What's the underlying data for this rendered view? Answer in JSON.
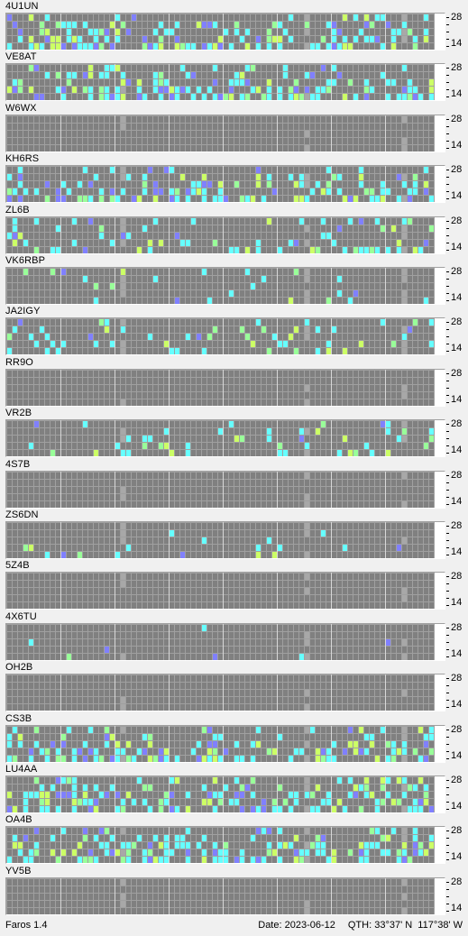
{
  "app": {
    "name": "Faros 1.4"
  },
  "status": {
    "date_label": "Date: 2023-06-12",
    "qth_label": "QTH: 33°37' N  117°38' W"
  },
  "axis": {
    "top_label": "28",
    "bottom_label": "14"
  },
  "colors": {
    "empty_cell": "#808080",
    "grid_line": "#a0a0a0",
    "cell_weak": "#66ffff",
    "cell_medium": "#99ff99",
    "cell_strong": "#8080ff",
    "cell_yellow": "#ccff66",
    "cell_error": "#a8a8a8"
  },
  "grid": {
    "minutes_per_column": 10,
    "columns": 79,
    "bands": [
      "28",
      "24",
      "21",
      "18",
      "14"
    ]
  },
  "beacons": [
    {
      "callsign": "4U1UN",
      "activity": "high"
    },
    {
      "callsign": "VE8AT",
      "activity": "high"
    },
    {
      "callsign": "W6WX",
      "activity": "none"
    },
    {
      "callsign": "KH6RS",
      "activity": "high"
    },
    {
      "callsign": "ZL6B",
      "activity": "medium"
    },
    {
      "callsign": "VK6RBP",
      "activity": "low"
    },
    {
      "callsign": "JA2IGY",
      "activity": "medium"
    },
    {
      "callsign": "RR9O",
      "activity": "none"
    },
    {
      "callsign": "VR2B",
      "activity": "medium"
    },
    {
      "callsign": "4S7B",
      "activity": "none"
    },
    {
      "callsign": "ZS6DN",
      "activity": "low"
    },
    {
      "callsign": "5Z4B",
      "activity": "none"
    },
    {
      "callsign": "4X6TU",
      "activity": "trace"
    },
    {
      "callsign": "OH2B",
      "activity": "none"
    },
    {
      "callsign": "CS3B",
      "activity": "high"
    },
    {
      "callsign": "LU4AA",
      "activity": "high"
    },
    {
      "callsign": "OA4B",
      "activity": "high"
    },
    {
      "callsign": "YV5B",
      "activity": "none"
    }
  ]
}
